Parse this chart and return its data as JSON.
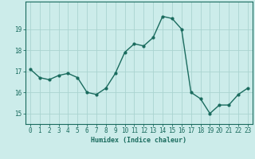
{
  "x": [
    0,
    1,
    2,
    3,
    4,
    5,
    6,
    7,
    8,
    9,
    10,
    11,
    12,
    13,
    14,
    15,
    16,
    17,
    18,
    19,
    20,
    21,
    22,
    23
  ],
  "y": [
    17.1,
    16.7,
    16.6,
    16.8,
    16.9,
    16.7,
    16.0,
    15.9,
    16.2,
    16.9,
    17.9,
    18.3,
    18.2,
    18.6,
    19.6,
    19.5,
    19.0,
    16.0,
    15.7,
    15.0,
    15.4,
    15.4,
    15.9,
    16.2
  ],
  "line_color": "#1a6b5e",
  "marker": "o",
  "markersize": 2.0,
  "linewidth": 1.0,
  "bg_color": "#ccecea",
  "grid_color": "#aad4d0",
  "xlabel": "Humidex (Indice chaleur)",
  "ylim": [
    14.5,
    20.3
  ],
  "yticks": [
    15,
    16,
    17,
    18,
    19
  ],
  "xticks": [
    0,
    1,
    2,
    3,
    4,
    5,
    6,
    7,
    8,
    9,
    10,
    11,
    12,
    13,
    14,
    15,
    16,
    17,
    18,
    19,
    20,
    21,
    22,
    23
  ],
  "xlabel_fontsize": 6.0,
  "tick_fontsize": 5.5,
  "axis_color": "#1a6b5e"
}
